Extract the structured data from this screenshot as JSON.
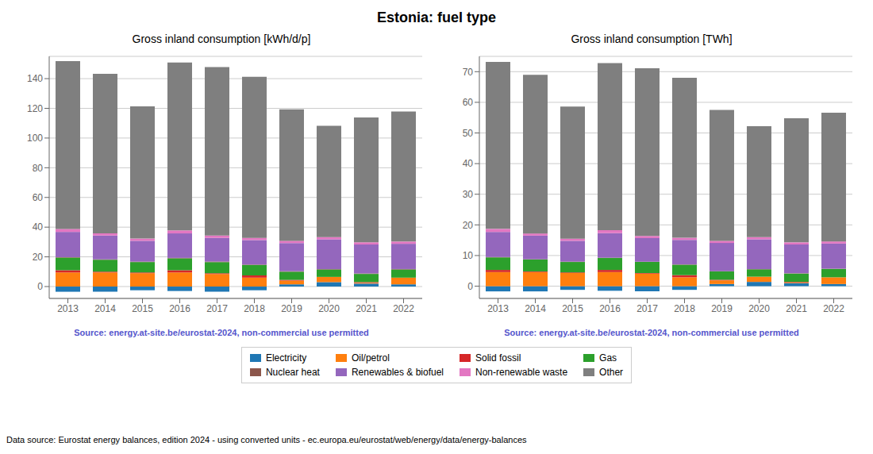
{
  "title": "Estonia: fuel type",
  "legend": "bottom",
  "annotations": [
    "Data source: Eurostat energy balances, edition 2024 - using converted units - ec.europa.eu/eurostat/web/energy/data/energy-balances"
  ],
  "chart_data": [
    {
      "type": "bar",
      "stacked": true,
      "grid": true,
      "title": "Gross inland consumption [kWh/d/p]",
      "annotations": [
        "Source: energy.at-site.be/eurostat-2024, non-commercial use permitted"
      ],
      "categories": [
        "2013",
        "2014",
        "2015",
        "2016",
        "2017",
        "2018",
        "2019",
        "2020",
        "2021",
        "2022"
      ],
      "ylim": [
        -8,
        155
      ],
      "yticks": [
        0,
        20,
        40,
        60,
        80,
        100,
        120,
        140
      ],
      "series": [
        {
          "name": "Electricity",
          "color": "#1f77b4",
          "values": [
            -3.5,
            -3.5,
            -2.5,
            -3.0,
            -3.5,
            -2.5,
            1.5,
            3.0,
            2.0,
            1.5
          ]
        },
        {
          "name": "Oil/petrol",
          "color": "#ff7f0e",
          "values": [
            9.5,
            9.5,
            9.0,
            9.5,
            8.5,
            6.0,
            2.5,
            3.5,
            0.5,
            4.5
          ]
        },
        {
          "name": "Solid fossil",
          "color": "#d62728",
          "values": [
            1.5,
            0.5,
            0.5,
            1.5,
            0.5,
            1.5,
            0.5,
            0.0,
            0.5,
            0.0
          ]
        },
        {
          "name": "Gas",
          "color": "#2ca02c",
          "values": [
            8.5,
            8.0,
            7.0,
            8.0,
            7.5,
            7.0,
            5.5,
            5.0,
            5.5,
            5.5
          ]
        },
        {
          "name": "Nuclear heat",
          "color": "#8c564b",
          "values": [
            0.3,
            0.3,
            0.3,
            0.3,
            0.3,
            0.3,
            0.3,
            0.3,
            0.3,
            0.3
          ]
        },
        {
          "name": "Renewables & biofuel",
          "color": "#9467bd",
          "values": [
            17.0,
            16.0,
            14.0,
            16.5,
            16.0,
            16.5,
            19.0,
            20.0,
            19.5,
            17.0
          ]
        },
        {
          "name": "Non-renewable waste",
          "color": "#e377c2",
          "values": [
            2.0,
            1.5,
            1.5,
            2.0,
            1.5,
            1.5,
            1.5,
            1.5,
            1.5,
            1.5
          ]
        },
        {
          "name": "Other",
          "color": "#7f7f7f",
          "values": [
            113.0,
            107.5,
            89.0,
            113.0,
            113.5,
            108.5,
            88.5,
            75.0,
            84.0,
            87.5
          ]
        }
      ]
    },
    {
      "type": "bar",
      "stacked": true,
      "grid": true,
      "title": "Gross inland consumption [TWh]",
      "annotations": [
        "Source: energy.at-site.be/eurostat-2024, non-commercial use permitted"
      ],
      "categories": [
        "2013",
        "2014",
        "2015",
        "2016",
        "2017",
        "2018",
        "2019",
        "2020",
        "2021",
        "2022"
      ],
      "ylim": [
        -4,
        75
      ],
      "yticks": [
        0,
        10,
        20,
        30,
        40,
        50,
        60,
        70
      ],
      "series": [
        {
          "name": "Electricity",
          "color": "#1f77b4",
          "values": [
            -1.7,
            -1.7,
            -1.2,
            -1.5,
            -1.7,
            -1.2,
            0.7,
            1.4,
            1.0,
            0.7
          ]
        },
        {
          "name": "Oil/petrol",
          "color": "#ff7f0e",
          "values": [
            4.6,
            4.6,
            4.3,
            4.6,
            4.1,
            2.9,
            1.2,
            1.7,
            0.2,
            2.2
          ]
        },
        {
          "name": "Solid fossil",
          "color": "#d62728",
          "values": [
            0.7,
            0.2,
            0.2,
            0.7,
            0.2,
            0.7,
            0.2,
            0.0,
            0.2,
            0.0
          ]
        },
        {
          "name": "Gas",
          "color": "#2ca02c",
          "values": [
            4.1,
            3.9,
            3.4,
            3.9,
            3.6,
            3.4,
            2.7,
            2.4,
            2.7,
            2.7
          ]
        },
        {
          "name": "Nuclear heat",
          "color": "#8c564b",
          "values": [
            0.1,
            0.1,
            0.1,
            0.1,
            0.1,
            0.1,
            0.1,
            0.1,
            0.1,
            0.1
          ]
        },
        {
          "name": "Renewables & biofuel",
          "color": "#9467bd",
          "values": [
            8.2,
            7.7,
            6.8,
            8.0,
            7.7,
            8.0,
            9.2,
            9.7,
            9.4,
            8.2
          ]
        },
        {
          "name": "Non-renewable waste",
          "color": "#e377c2",
          "values": [
            1.0,
            0.7,
            0.7,
            1.0,
            0.7,
            0.7,
            0.7,
            0.7,
            0.7,
            0.7
          ]
        },
        {
          "name": "Other",
          "color": "#7f7f7f",
          "values": [
            54.5,
            51.8,
            43.1,
            54.5,
            54.7,
            52.2,
            42.7,
            36.2,
            40.5,
            42.0
          ]
        }
      ]
    }
  ]
}
